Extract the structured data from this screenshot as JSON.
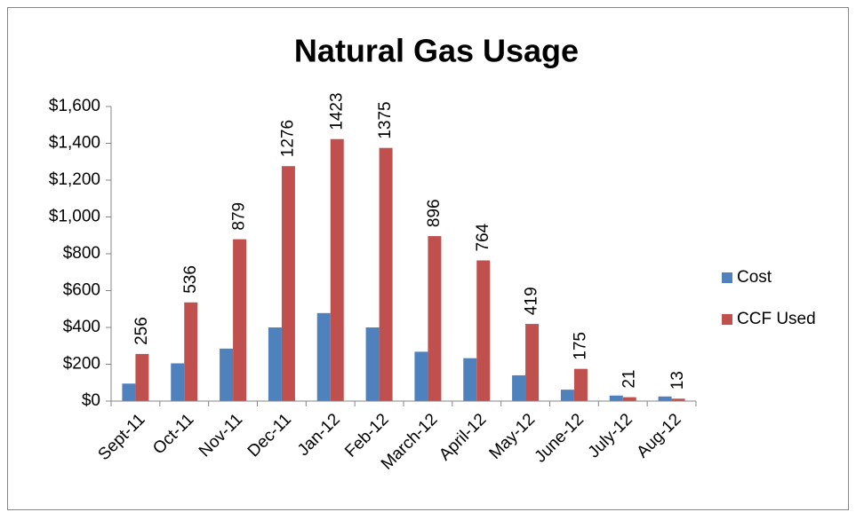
{
  "chart_data": {
    "type": "bar",
    "title": "Natural Gas Usage",
    "categories": [
      "Sept-11",
      "Oct-11",
      "Nov-11",
      "Dec-11",
      "Jan-12",
      "Feb-12",
      "March-12",
      "April-12",
      "May-12",
      "June-12",
      "July-12",
      "Aug-12"
    ],
    "series": [
      {
        "name": "Cost",
        "color": "#4f81bd",
        "values": [
          95,
          205,
          285,
          400,
          478,
          400,
          268,
          233,
          140,
          62,
          30,
          25
        ]
      },
      {
        "name": "CCF Used",
        "color": "#c0504d",
        "values": [
          256,
          536,
          879,
          1276,
          1423,
          1375,
          896,
          764,
          419,
          175,
          21,
          13
        ],
        "data_labels": true
      }
    ],
    "ylim": [
      0,
      1600
    ],
    "yticks": [
      {
        "value": 0,
        "label": "$0"
      },
      {
        "value": 200,
        "label": "$200"
      },
      {
        "value": 400,
        "label": "$400"
      },
      {
        "value": 600,
        "label": "$600"
      },
      {
        "value": 800,
        "label": "$800"
      },
      {
        "value": 1000,
        "label": "$1,000"
      },
      {
        "value": 1200,
        "label": "$1,200"
      },
      {
        "value": 1400,
        "label": "$1,400"
      },
      {
        "value": 1600,
        "label": "$1,600"
      }
    ],
    "legend": "right",
    "grid": false
  }
}
